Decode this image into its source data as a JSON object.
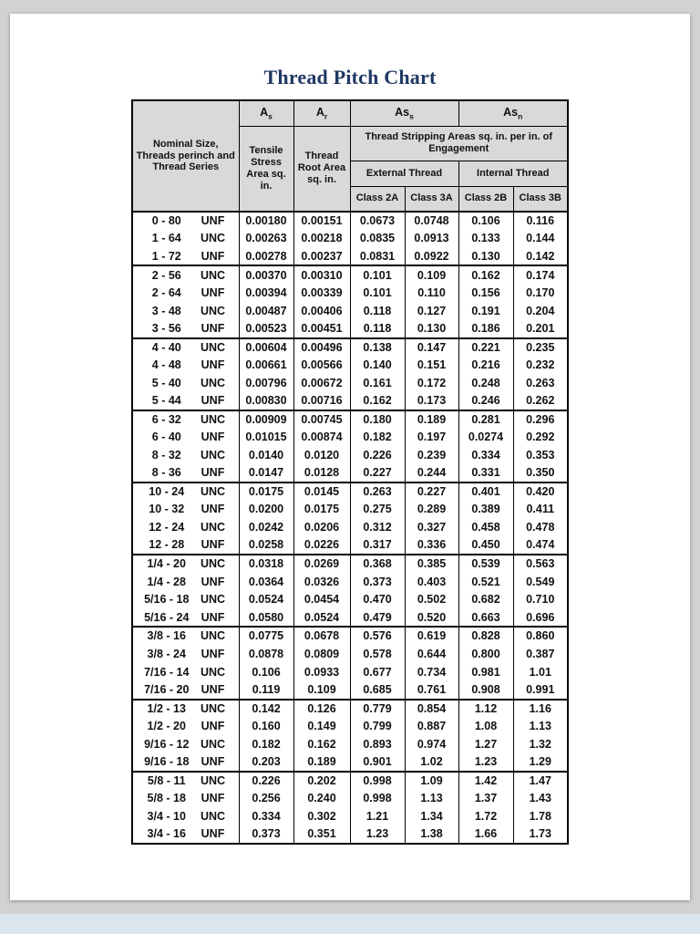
{
  "page": {
    "title": "Thread Pitch Chart"
  },
  "colors": {
    "title_color": "#203864",
    "header_bg": "#d9d9d9",
    "border": "#000000"
  },
  "table": {
    "header": {
      "nominal": "Nominal Size, Threads perinch and Thread Series",
      "as": {
        "base": "A",
        "sub": "s"
      },
      "ar": {
        "base": "A",
        "sub": "r"
      },
      "ass": {
        "base": "As",
        "sub": "s"
      },
      "asn": {
        "base": "As",
        "sub": "n"
      },
      "tensile": "Tensile Stress Area sq. in.",
      "root": "Thread Root Area sq. in.",
      "stripping": "Thread Stripping Areas sq. in. per in. of Engagement",
      "external": "External Thread",
      "internal": "Internal Thread",
      "class_2a": "Class 2A",
      "class_3a": "Class 3A",
      "class_2b": "Class 2B",
      "class_3b": "Class 3B"
    },
    "rows": [
      {
        "size": "0 - 80",
        "series": "UNF",
        "values": [
          "0.00180",
          "0.00151",
          "0.0673",
          "0.0748",
          "0.106",
          "0.116"
        ],
        "group_start": true
      },
      {
        "size": "1 - 64",
        "series": "UNC",
        "values": [
          "0.00263",
          "0.00218",
          "0.0835",
          "0.0913",
          "0.133",
          "0.144"
        ]
      },
      {
        "size": "1 - 72",
        "series": "UNF",
        "values": [
          "0.00278",
          "0.00237",
          "0.0831",
          "0.0922",
          "0.130",
          "0.142"
        ]
      },
      {
        "size": "2 - 56",
        "series": "UNC",
        "values": [
          "0.00370",
          "0.00310",
          "0.101",
          "0.109",
          "0.162",
          "0.174"
        ],
        "group_start": true
      },
      {
        "size": "2 - 64",
        "series": "UNF",
        "values": [
          "0.00394",
          "0.00339",
          "0.101",
          "0.110",
          "0.156",
          "0.170"
        ]
      },
      {
        "size": "3 - 48",
        "series": "UNC",
        "values": [
          "0.00487",
          "0.00406",
          "0.118",
          "0.127",
          "0.191",
          "0.204"
        ]
      },
      {
        "size": "3 - 56",
        "series": "UNF",
        "values": [
          "0.00523",
          "0.00451",
          "0.118",
          "0.130",
          "0.186",
          "0.201"
        ]
      },
      {
        "size": "4 - 40",
        "series": "UNC",
        "values": [
          "0.00604",
          "0.00496",
          "0.138",
          "0.147",
          "0.221",
          "0.235"
        ],
        "group_start": true
      },
      {
        "size": "4 - 48",
        "series": "UNF",
        "values": [
          "0.00661",
          "0.00566",
          "0.140",
          "0.151",
          "0.216",
          "0.232"
        ]
      },
      {
        "size": "5 - 40",
        "series": "UNC",
        "values": [
          "0.00796",
          "0.00672",
          "0.161",
          "0.172",
          "0.248",
          "0.263"
        ]
      },
      {
        "size": "5 - 44",
        "series": "UNF",
        "values": [
          "0.00830",
          "0.00716",
          "0.162",
          "0.173",
          "0.246",
          "0.262"
        ]
      },
      {
        "size": "6 - 32",
        "series": "UNC",
        "values": [
          "0.00909",
          "0.00745",
          "0.180",
          "0.189",
          "0.281",
          "0.296"
        ],
        "group_start": true
      },
      {
        "size": "6 - 40",
        "series": "UNF",
        "values": [
          "0.01015",
          "0.00874",
          "0.182",
          "0.197",
          "0.0274",
          "0.292"
        ]
      },
      {
        "size": "8 - 32",
        "series": "UNC",
        "values": [
          "0.0140",
          "0.0120",
          "0.226",
          "0.239",
          "0.334",
          "0.353"
        ]
      },
      {
        "size": "8 - 36",
        "series": "UNF",
        "values": [
          "0.0147",
          "0.0128",
          "0.227",
          "0.244",
          "0.331",
          "0.350"
        ]
      },
      {
        "size": "10 - 24",
        "series": "UNC",
        "values": [
          "0.0175",
          "0.0145",
          "0.263",
          "0.227",
          "0.401",
          "0.420"
        ],
        "group_start": true
      },
      {
        "size": "10 - 32",
        "series": "UNF",
        "values": [
          "0.0200",
          "0.0175",
          "0.275",
          "0.289",
          "0.389",
          "0.411"
        ]
      },
      {
        "size": "12 - 24",
        "series": "UNC",
        "values": [
          "0.0242",
          "0.0206",
          "0.312",
          "0.327",
          "0.458",
          "0.478"
        ]
      },
      {
        "size": "12 - 28",
        "series": "UNF",
        "values": [
          "0.0258",
          "0.0226",
          "0.317",
          "0.336",
          "0.450",
          "0.474"
        ]
      },
      {
        "size": "1/4 - 20",
        "series": "UNC",
        "values": [
          "0.0318",
          "0.0269",
          "0.368",
          "0.385",
          "0.539",
          "0.563"
        ],
        "group_start": true
      },
      {
        "size": "1/4 - 28",
        "series": "UNF",
        "values": [
          "0.0364",
          "0.0326",
          "0.373",
          "0.403",
          "0.521",
          "0.549"
        ]
      },
      {
        "size": "5/16 - 18",
        "series": "UNC",
        "values": [
          "0.0524",
          "0.0454",
          "0.470",
          "0.502",
          "0.682",
          "0.710"
        ]
      },
      {
        "size": "5/16 - 24",
        "series": "UNF",
        "values": [
          "0.0580",
          "0.0524",
          "0.479",
          "0.520",
          "0.663",
          "0.696"
        ]
      },
      {
        "size": "3/8 - 16",
        "series": "UNC",
        "values": [
          "0.0775",
          "0.0678",
          "0.576",
          "0.619",
          "0.828",
          "0.860"
        ],
        "group_start": true
      },
      {
        "size": "3/8 - 24",
        "series": "UNF",
        "values": [
          "0.0878",
          "0.0809",
          "0.578",
          "0.644",
          "0.800",
          "0.387"
        ]
      },
      {
        "size": "7/16 - 14",
        "series": "UNC",
        "values": [
          "0.106",
          "0.0933",
          "0.677",
          "0.734",
          "0.981",
          "1.01"
        ]
      },
      {
        "size": "7/16 - 20",
        "series": "UNF",
        "values": [
          "0.119",
          "0.109",
          "0.685",
          "0.761",
          "0.908",
          "0.991"
        ]
      },
      {
        "size": "1/2 - 13",
        "series": "UNC",
        "values": [
          "0.142",
          "0.126",
          "0.779",
          "0.854",
          "1.12",
          "1.16"
        ],
        "group_start": true
      },
      {
        "size": "1/2 - 20",
        "series": "UNF",
        "values": [
          "0.160",
          "0.149",
          "0.799",
          "0.887",
          "1.08",
          "1.13"
        ]
      },
      {
        "size": "9/16 - 12",
        "series": "UNC",
        "values": [
          "0.182",
          "0.162",
          "0.893",
          "0.974",
          "1.27",
          "1.32"
        ]
      },
      {
        "size": "9/16 - 18",
        "series": "UNF",
        "values": [
          "0.203",
          "0.189",
          "0.901",
          "1.02",
          "1.23",
          "1.29"
        ]
      },
      {
        "size": "5/8 - 11",
        "series": "UNC",
        "values": [
          "0.226",
          "0.202",
          "0.998",
          "1.09",
          "1.42",
          "1.47"
        ],
        "group_start": true
      },
      {
        "size": "5/8 - 18",
        "series": "UNF",
        "values": [
          "0.256",
          "0.240",
          "0.998",
          "1.13",
          "1.37",
          "1.43"
        ]
      },
      {
        "size": "3/4 - 10",
        "series": "UNC",
        "values": [
          "0.334",
          "0.302",
          "1.21",
          "1.34",
          "1.72",
          "1.78"
        ]
      },
      {
        "size": "3/4 - 16",
        "series": "UNF",
        "values": [
          "0.373",
          "0.351",
          "1.23",
          "1.38",
          "1.66",
          "1.73"
        ]
      }
    ]
  }
}
